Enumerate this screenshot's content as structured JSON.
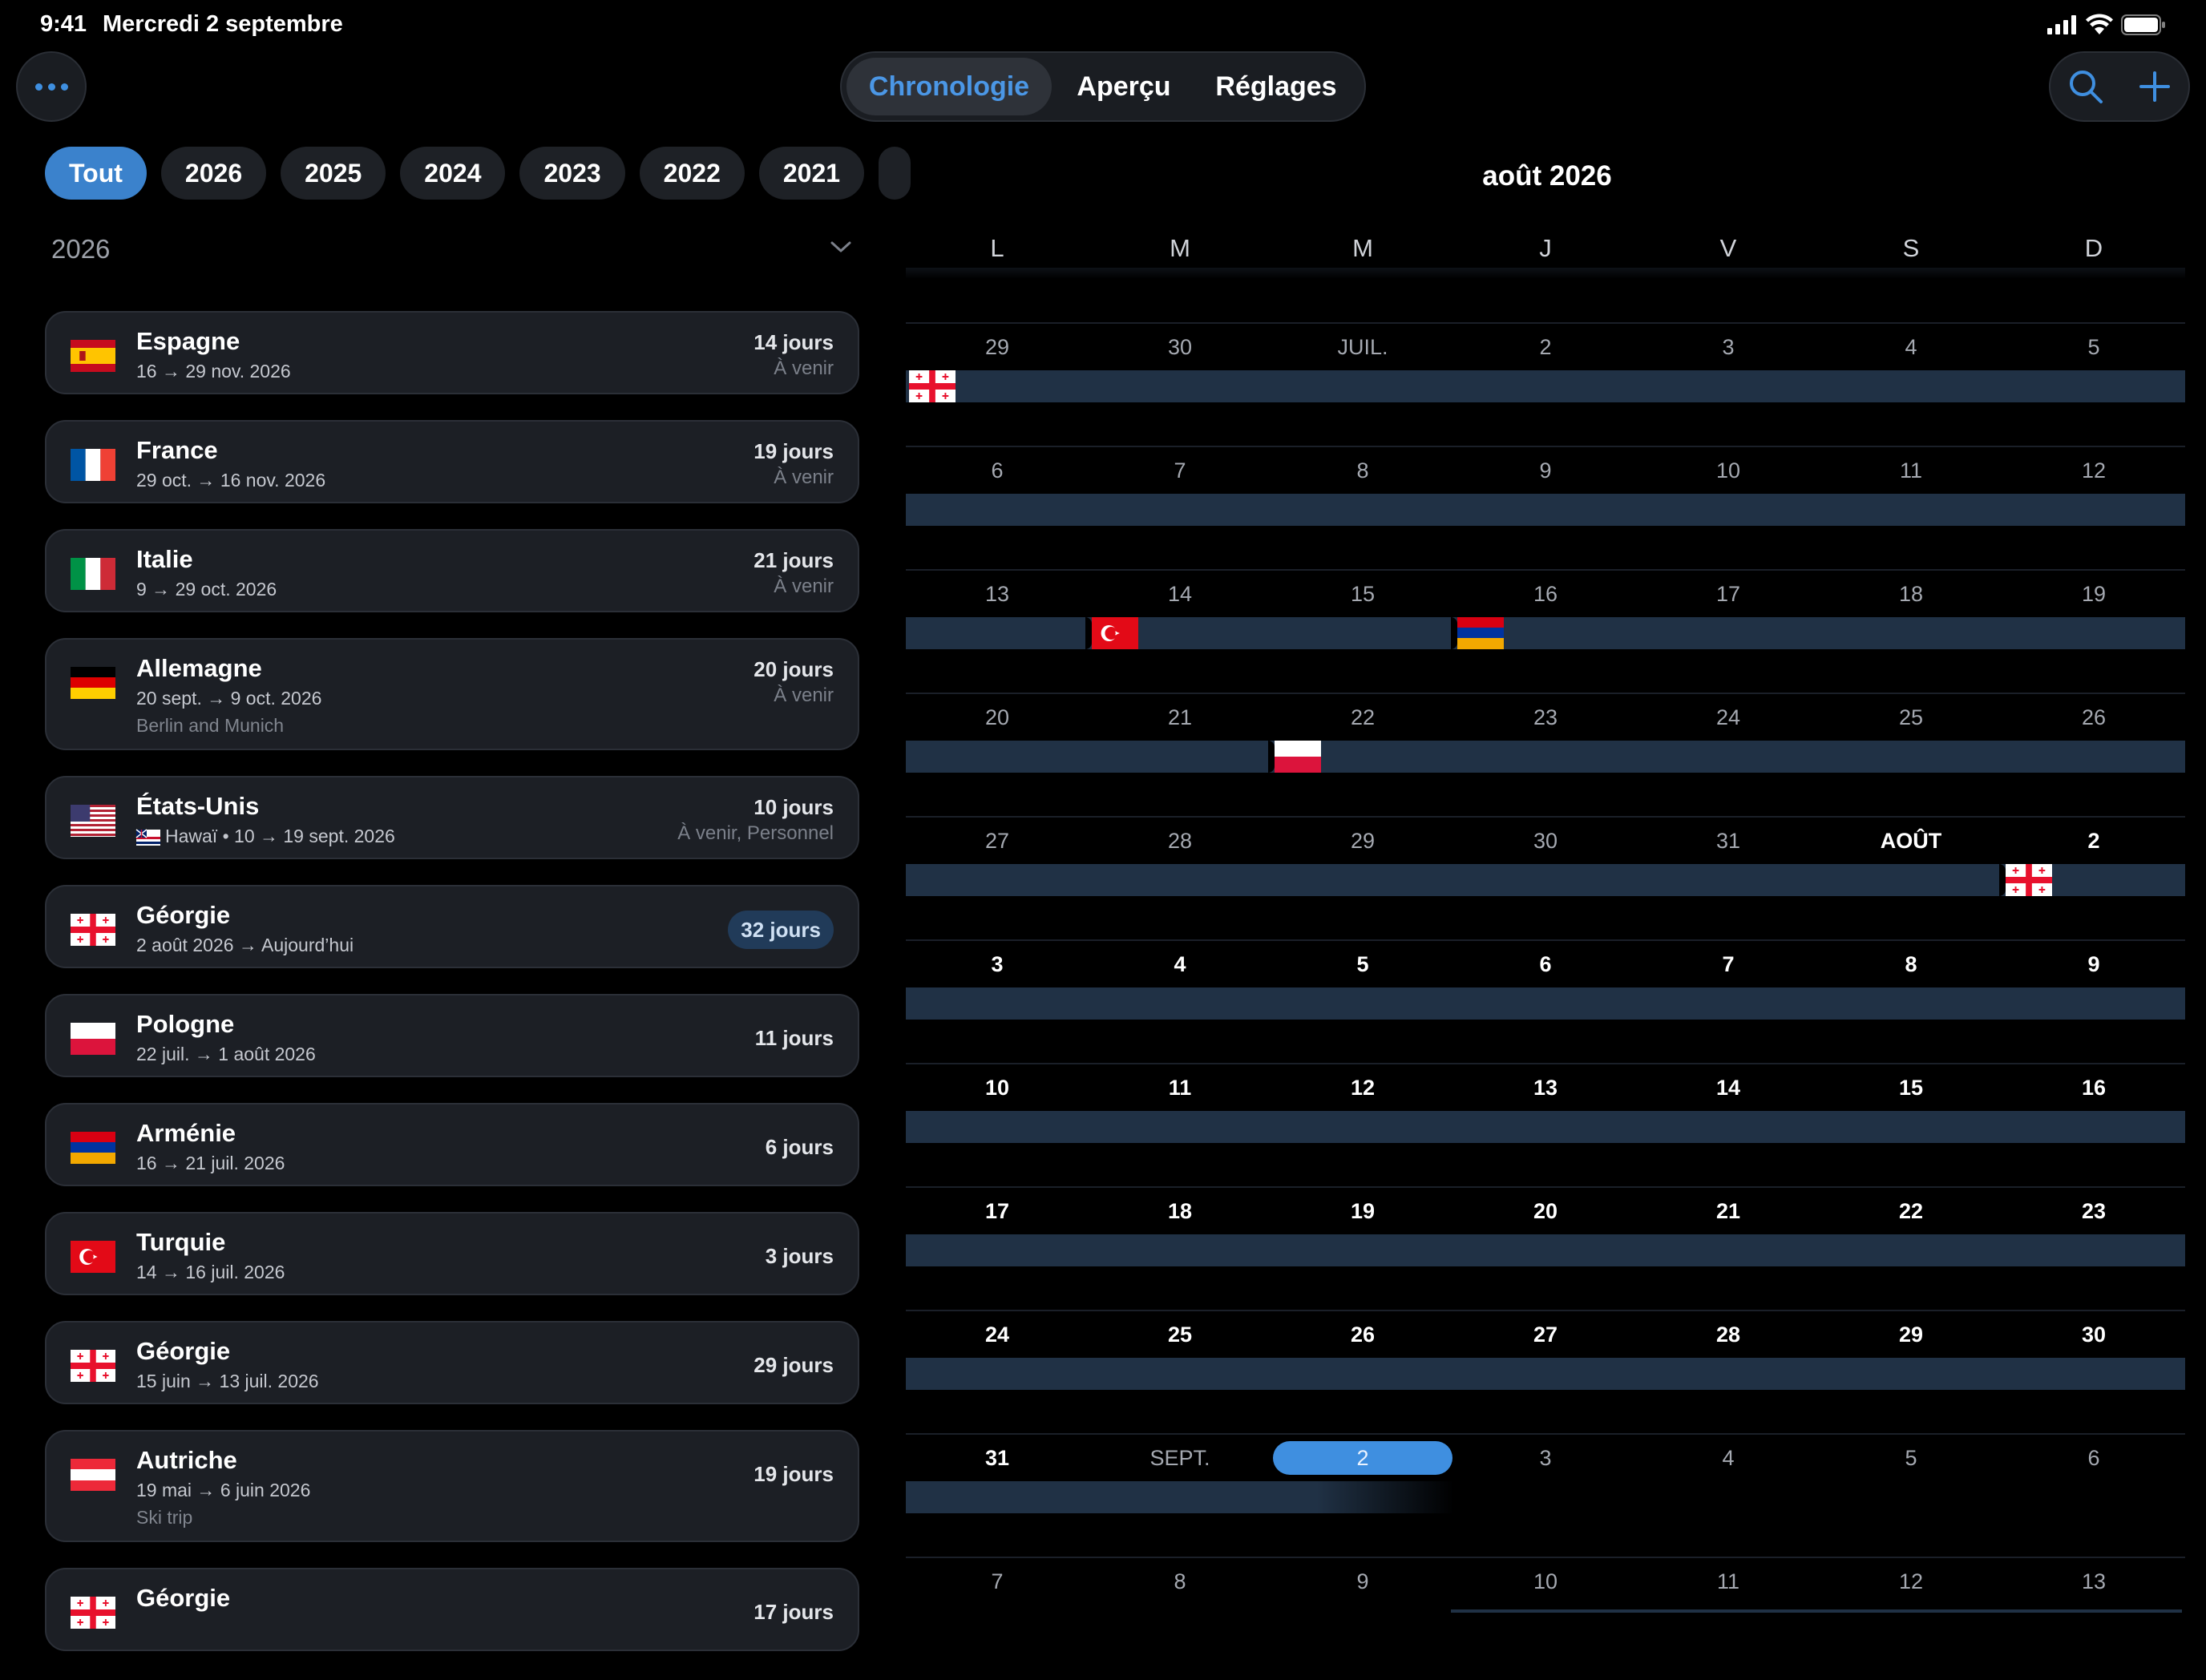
{
  "status": {
    "time": "9:41",
    "date": "Mercredi 2 septembre"
  },
  "nav": {
    "tabs": [
      "Chronologie",
      "Aperçu",
      "Réglages"
    ],
    "active": 0
  },
  "years": [
    "Tout",
    "2026",
    "2025",
    "2024",
    "2023",
    "2022",
    "2021"
  ],
  "section_year": "2026",
  "trips": [
    {
      "name": "Espagne",
      "dates": "16 → 29 nov. 2026",
      "days": "14 jours",
      "status": "À venir",
      "flag": "es"
    },
    {
      "name": "France",
      "dates": "29 oct. → 16 nov. 2026",
      "days": "19 jours",
      "status": "À venir",
      "flag": "fr"
    },
    {
      "name": "Italie",
      "dates": "9 → 29 oct. 2026",
      "days": "21 jours",
      "status": "À venir",
      "flag": "it"
    },
    {
      "name": "Allemagne",
      "dates": "20 sept. → 9 oct. 2026",
      "note": "Berlin and Munich",
      "days": "20 jours",
      "status": "À venir",
      "flag": "de"
    },
    {
      "name": "États-Unis",
      "dates": "Hawaï • 10 → 19 sept. 2026",
      "sub_flag": "hi",
      "days": "10 jours",
      "status": "À venir, Personnel",
      "flag": "us"
    },
    {
      "name": "Géorgie",
      "dates": "2 août 2026 → Aujourd’hui",
      "days": "32 jours",
      "current": true,
      "flag": "ge"
    },
    {
      "name": "Pologne",
      "dates": "22 juil. → 1 août 2026",
      "days": "11 jours",
      "flag": "pl"
    },
    {
      "name": "Arménie",
      "dates": "16 → 21 juil. 2026",
      "days": "6 jours",
      "flag": "am"
    },
    {
      "name": "Turquie",
      "dates": "14 → 16 juil. 2026",
      "days": "3 jours",
      "flag": "tr"
    },
    {
      "name": "Géorgie",
      "dates": "15 juin → 13 juil. 2026",
      "days": "29 jours",
      "flag": "ge"
    },
    {
      "name": "Autriche",
      "dates": "19 mai → 6 juin 2026",
      "note": "Ski trip",
      "days": "19 jours",
      "flag": "at"
    },
    {
      "name": "Géorgie",
      "dates": "",
      "days": "17 jours",
      "flag": "ge"
    }
  ],
  "calendar": {
    "title": "août 2026",
    "weekdays": [
      "L",
      "M",
      "M",
      "J",
      "V",
      "S",
      "D"
    ],
    "weeks": [
      {
        "days": [
          "29",
          "30",
          "JUIL.",
          "2",
          "3",
          "4",
          "5"
        ],
        "cur": []
      },
      {
        "days": [
          "6",
          "7",
          "8",
          "9",
          "10",
          "11",
          "12"
        ],
        "cur": []
      },
      {
        "days": [
          "13",
          "14",
          "15",
          "16",
          "17",
          "18",
          "19"
        ],
        "cur": []
      },
      {
        "days": [
          "20",
          "21",
          "22",
          "23",
          "24",
          "25",
          "26"
        ],
        "cur": []
      },
      {
        "days": [
          "27",
          "28",
          "29",
          "30",
          "31",
          "AOÛT",
          "2"
        ],
        "cur": [
          5,
          6
        ]
      },
      {
        "days": [
          "3",
          "4",
          "5",
          "6",
          "7",
          "8",
          "9"
        ],
        "cur": [
          0,
          1,
          2,
          3,
          4,
          5,
          6
        ]
      },
      {
        "days": [
          "10",
          "11",
          "12",
          "13",
          "14",
          "15",
          "16"
        ],
        "cur": [
          0,
          1,
          2,
          3,
          4,
          5,
          6
        ]
      },
      {
        "days": [
          "17",
          "18",
          "19",
          "20",
          "21",
          "22",
          "23"
        ],
        "cur": [
          0,
          1,
          2,
          3,
          4,
          5,
          6
        ]
      },
      {
        "days": [
          "24",
          "25",
          "26",
          "27",
          "28",
          "29",
          "30"
        ],
        "cur": [
          0,
          1,
          2,
          3,
          4,
          5,
          6
        ]
      },
      {
        "days": [
          "31",
          "SEPT.",
          "2",
          "3",
          "4",
          "5",
          "6"
        ],
        "cur": [
          0
        ],
        "today": 2
      },
      {
        "days": [
          "7",
          "8",
          "9",
          "10",
          "11",
          "12",
          "13"
        ],
        "cur": []
      }
    ],
    "trip_markers": [
      "ge",
      "tr",
      "am",
      "pl",
      "ge"
    ]
  },
  "colors": {
    "accent": "#3f8fe0",
    "band": "#203145",
    "card": "#1c1f25"
  }
}
